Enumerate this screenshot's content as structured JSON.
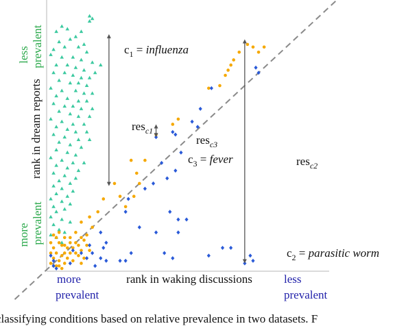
{
  "caption": "classifying conditions based on relative prevalence in two datasets. F",
  "chart_data": {
    "type": "scatter",
    "title": "",
    "xlabel": "rank in waking discussions",
    "ylabel": "rank in dream reports",
    "xlim": [
      0,
      100
    ],
    "ylim": [
      0,
      100
    ],
    "axis_end_labels": {
      "x_start": [
        "more",
        "prevalent"
      ],
      "x_end": [
        "less",
        "prevalent"
      ],
      "y_end": [
        "less",
        "prevalent"
      ],
      "y_start": [
        "more",
        "prevalent"
      ]
    },
    "reference_line": {
      "name": "x = y",
      "style": "dashed",
      "from": [
        -12,
        -12
      ],
      "to": [
        112,
        112
      ]
    },
    "annotations": [
      {
        "id": "c1",
        "text": "c1 = influenza",
        "point": [
          22,
          91
        ],
        "residual_label": "res c1",
        "residual_to": [
          22,
          32
        ]
      },
      {
        "id": "c2",
        "text": "c2 = parasitic worm",
        "point": [
          71,
          2
        ],
        "residual_label": "res c2",
        "residual_to": [
          71,
          89
        ]
      },
      {
        "id": "c3",
        "text": "c3 = fever",
        "point": [
          39,
          56
        ],
        "residual_label": "res c3",
        "residual_to": [
          39,
          51
        ]
      }
    ],
    "series": [
      {
        "marker": "triangle",
        "color": "#3cc9a0",
        "points": [
          [
            15,
            98
          ],
          [
            16,
            97
          ],
          [
            15,
            96
          ],
          [
            5,
            94
          ],
          [
            7,
            93
          ],
          [
            3,
            92
          ],
          [
            10,
            90
          ],
          [
            12,
            92
          ],
          [
            4,
            88
          ],
          [
            8,
            89
          ],
          [
            13,
            87
          ],
          [
            2,
            85
          ],
          [
            6,
            86
          ],
          [
            11,
            86
          ],
          [
            14,
            84
          ],
          [
            1,
            83
          ],
          [
            5,
            82
          ],
          [
            9,
            82
          ],
          [
            12,
            81
          ],
          [
            16,
            80
          ],
          [
            3,
            79
          ],
          [
            7,
            79
          ],
          [
            10,
            78
          ],
          [
            13,
            77
          ],
          [
            2,
            76
          ],
          [
            6,
            76
          ],
          [
            9,
            75
          ],
          [
            12,
            74
          ],
          [
            15,
            74
          ],
          [
            17,
            76
          ],
          [
            19,
            79
          ],
          [
            4,
            73
          ],
          [
            8,
            72
          ],
          [
            11,
            72
          ],
          [
            14,
            71
          ],
          [
            1,
            70
          ],
          [
            5,
            69
          ],
          [
            10,
            69
          ],
          [
            13,
            68
          ],
          [
            16,
            68
          ],
          [
            3,
            67
          ],
          [
            7,
            66
          ],
          [
            11,
            65
          ],
          [
            14,
            65
          ],
          [
            2,
            64
          ],
          [
            6,
            63
          ],
          [
            9,
            63
          ],
          [
            12,
            62
          ],
          [
            16,
            62
          ],
          [
            4,
            61
          ],
          [
            8,
            60
          ],
          [
            11,
            59
          ],
          [
            15,
            59
          ],
          [
            1,
            58
          ],
          [
            5,
            57
          ],
          [
            9,
            56
          ],
          [
            13,
            56
          ],
          [
            3,
            55
          ],
          [
            7,
            54
          ],
          [
            10,
            53
          ],
          [
            14,
            53
          ],
          [
            2,
            52
          ],
          [
            6,
            51
          ],
          [
            11,
            50
          ],
          [
            15,
            50
          ],
          [
            4,
            49
          ],
          [
            8,
            48
          ],
          [
            12,
            47
          ],
          [
            3,
            46
          ],
          [
            7,
            45
          ],
          [
            10,
            44
          ],
          [
            1,
            43
          ],
          [
            5,
            42
          ],
          [
            9,
            41
          ],
          [
            13,
            41
          ],
          [
            3,
            40
          ],
          [
            7,
            39
          ],
          [
            11,
            38
          ],
          [
            2,
            37
          ],
          [
            6,
            36
          ],
          [
            10,
            35
          ],
          [
            4,
            34
          ],
          [
            8,
            33
          ],
          [
            2,
            32
          ],
          [
            5,
            31
          ],
          [
            9,
            30
          ],
          [
            3,
            29
          ],
          [
            7,
            28
          ],
          [
            1,
            27
          ],
          [
            5,
            26
          ],
          [
            8,
            25
          ],
          [
            2,
            24
          ],
          [
            6,
            23
          ],
          [
            3,
            22
          ],
          [
            1,
            20
          ],
          [
            5,
            19
          ],
          [
            8,
            18
          ],
          [
            2,
            17
          ],
          [
            4,
            15
          ],
          [
            6,
            14
          ],
          [
            1,
            13
          ],
          [
            3,
            12
          ],
          [
            5,
            10
          ]
        ]
      },
      {
        "marker": "circle",
        "color": "#f5a800",
        "points": [
          [
            72,
            87
          ],
          [
            74,
            86
          ],
          [
            69,
            84
          ],
          [
            76,
            84
          ],
          [
            78,
            86
          ],
          [
            67,
            81
          ],
          [
            66,
            79
          ],
          [
            64,
            75
          ],
          [
            65,
            77
          ],
          [
            58,
            70
          ],
          [
            62,
            71
          ],
          [
            47,
            58
          ],
          [
            45,
            56
          ],
          [
            39,
            52
          ],
          [
            35,
            42
          ],
          [
            30,
            42
          ],
          [
            32,
            37
          ],
          [
            33,
            33
          ],
          [
            31,
            28
          ],
          [
            26,
            28
          ],
          [
            24,
            33
          ],
          [
            20,
            27
          ],
          [
            28,
            24
          ],
          [
            18,
            22
          ],
          [
            15,
            20
          ],
          [
            16,
            16
          ],
          [
            12,
            18
          ],
          [
            10,
            14
          ],
          [
            8,
            12
          ],
          [
            12,
            12
          ],
          [
            10,
            10
          ],
          [
            5,
            9
          ],
          [
            7,
            8
          ],
          [
            9,
            8
          ],
          [
            12,
            7
          ],
          [
            14,
            9
          ],
          [
            11,
            5
          ],
          [
            13,
            4
          ],
          [
            3,
            12
          ],
          [
            4,
            10
          ],
          [
            6,
            9
          ],
          [
            8,
            6
          ],
          [
            3,
            6
          ],
          [
            5,
            5
          ],
          [
            7,
            4
          ],
          [
            2,
            4
          ],
          [
            4,
            3
          ],
          [
            6,
            2
          ],
          [
            1,
            2
          ],
          [
            3,
            1
          ],
          [
            5,
            0
          ],
          [
            2,
            8
          ],
          [
            1,
            6
          ],
          [
            1,
            10
          ],
          [
            2,
            13
          ],
          [
            4,
            14
          ],
          [
            6,
            12
          ],
          [
            8,
            10
          ],
          [
            2,
            1
          ],
          [
            4,
            1
          ],
          [
            6,
            6
          ],
          [
            9,
            3
          ],
          [
            10,
            6
          ],
          [
            12,
            2
          ],
          [
            11,
            9
          ],
          [
            13,
            11
          ],
          [
            15,
            7
          ],
          [
            14,
            13
          ]
        ]
      },
      {
        "marker": "diamond",
        "color": "#2a5ad8",
        "points": [
          [
            75,
            78
          ],
          [
            76,
            76
          ],
          [
            59,
            70
          ],
          [
            55,
            62
          ],
          [
            52,
            57
          ],
          [
            54,
            55
          ],
          [
            46,
            52
          ],
          [
            45,
            53
          ],
          [
            39,
            51
          ],
          [
            48,
            45
          ],
          [
            41,
            41
          ],
          [
            46,
            38
          ],
          [
            43,
            35
          ],
          [
            38,
            33
          ],
          [
            35,
            31
          ],
          [
            29,
            27
          ],
          [
            28,
            22
          ],
          [
            44,
            22
          ],
          [
            47,
            19
          ],
          [
            50,
            19
          ],
          [
            33,
            16
          ],
          [
            39,
            14
          ],
          [
            47,
            14
          ],
          [
            19,
            14
          ],
          [
            21,
            10
          ],
          [
            15,
            9
          ],
          [
            19,
            4
          ],
          [
            21,
            3
          ],
          [
            26,
            3
          ],
          [
            28,
            3
          ],
          [
            8,
            2
          ],
          [
            17,
            1
          ],
          [
            30,
            6
          ],
          [
            42,
            6
          ],
          [
            45,
            4
          ],
          [
            63,
            8
          ],
          [
            66,
            8
          ],
          [
            58,
            5
          ],
          [
            71,
            2
          ],
          [
            73,
            5
          ],
          [
            74,
            3
          ],
          [
            2,
            3
          ],
          [
            2,
            1
          ],
          [
            1,
            5
          ],
          [
            3,
            0
          ],
          [
            9,
            7
          ],
          [
            12,
            6
          ],
          [
            14,
            4
          ],
          [
            16,
            6
          ],
          [
            20,
            8
          ]
        ]
      }
    ],
    "grid": false,
    "legend": "none"
  }
}
